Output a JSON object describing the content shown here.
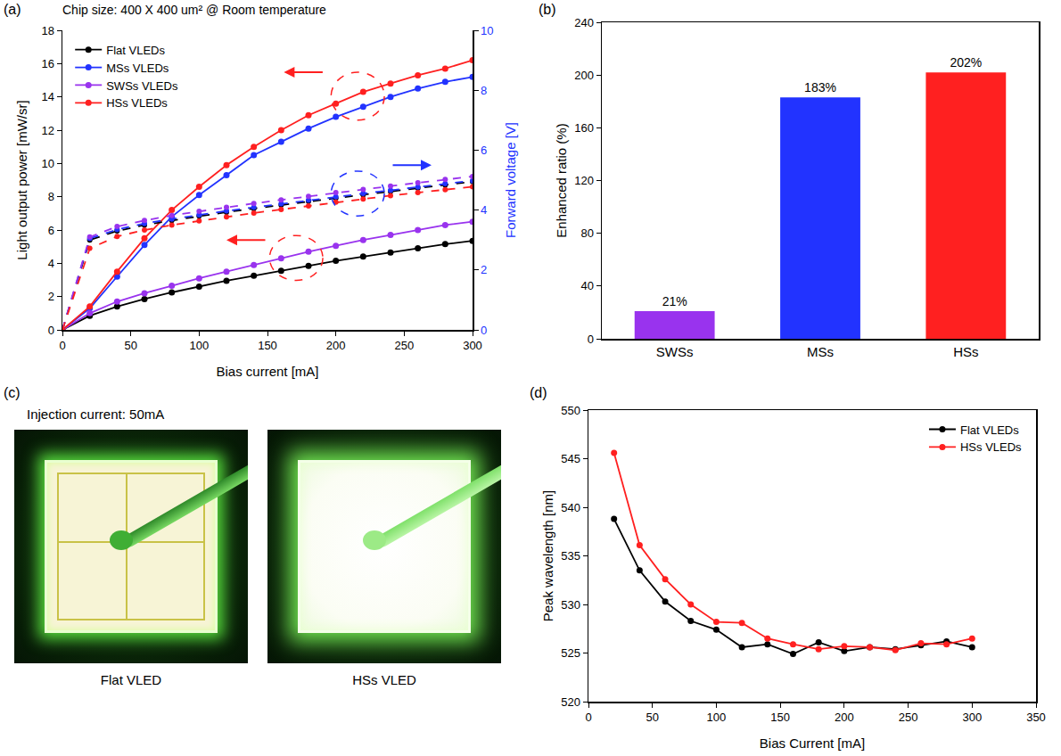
{
  "chart_data": [
    {
      "panel": "(a)",
      "type": "line",
      "title": "Chip size: 400 X 400 um² @ Room temperature",
      "x_label": "Bias current [mA]",
      "y_label": "Light output power [mW/sr]",
      "y2_label": "Forward voltage [V]",
      "x": [
        0,
        20,
        40,
        60,
        80,
        100,
        120,
        140,
        160,
        180,
        200,
        220,
        240,
        260,
        280,
        300
      ],
      "xlim": [
        0,
        300
      ],
      "xticks": [
        0,
        50,
        100,
        150,
        200,
        250,
        300
      ],
      "ylim": [
        0,
        18
      ],
      "yticks": [
        0,
        2,
        4,
        6,
        8,
        10,
        12,
        14,
        16,
        18
      ],
      "y2lim": [
        0,
        10
      ],
      "y2ticks": [
        0,
        2,
        4,
        6,
        8,
        10
      ],
      "grid": false,
      "legend": "top-left",
      "series": [
        {
          "name": "Flat VLEDs",
          "color": "#000000",
          "marker": "circle",
          "line_style": "solid",
          "values": [
            0,
            0.85,
            1.4,
            1.85,
            2.25,
            2.6,
            2.95,
            3.25,
            3.55,
            3.85,
            4.15,
            4.4,
            4.65,
            4.9,
            5.15,
            5.35
          ]
        },
        {
          "name": "MSs VLEDs",
          "color": "#2233ff",
          "marker": "circle",
          "line_style": "solid",
          "values": [
            0,
            1.3,
            3.2,
            5.1,
            6.8,
            8.1,
            9.3,
            10.5,
            11.3,
            12.1,
            12.8,
            13.4,
            14.0,
            14.5,
            14.9,
            15.2
          ]
        },
        {
          "name": "SWSs VLEDs",
          "color": "#9933ee",
          "marker": "circle",
          "line_style": "solid",
          "values": [
            0,
            1.0,
            1.7,
            2.2,
            2.65,
            3.1,
            3.5,
            3.9,
            4.3,
            4.7,
            5.05,
            5.4,
            5.7,
            6.0,
            6.3,
            6.5
          ]
        },
        {
          "name": "HSs VLEDs",
          "color": "#ff2020",
          "marker": "circle",
          "line_style": "solid",
          "values": [
            0,
            1.4,
            3.5,
            5.5,
            7.2,
            8.6,
            9.9,
            11.0,
            12.0,
            12.9,
            13.6,
            14.3,
            14.8,
            15.3,
            15.7,
            16.2
          ]
        },
        {
          "name": "Flat VLEDs",
          "color": "#000000",
          "marker": "circle",
          "line_style": "dash",
          "axis": "y2",
          "values": [
            0,
            3.0,
            3.3,
            3.5,
            3.65,
            3.8,
            3.93,
            4.05,
            4.17,
            4.29,
            4.4,
            4.51,
            4.62,
            4.73,
            4.84,
            4.95
          ]
        },
        {
          "name": "MSs VLEDs",
          "color": "#2233ff",
          "marker": "circle",
          "line_style": "dash",
          "axis": "y2",
          "values": [
            0,
            3.05,
            3.35,
            3.55,
            3.7,
            3.84,
            3.97,
            4.09,
            4.21,
            4.33,
            4.44,
            4.55,
            4.66,
            4.77,
            4.88,
            4.98
          ]
        },
        {
          "name": "SWSs VLEDs",
          "color": "#9933ee",
          "marker": "circle",
          "line_style": "dash",
          "axis": "y2",
          "values": [
            0,
            3.1,
            3.45,
            3.65,
            3.82,
            3.96,
            4.09,
            4.22,
            4.34,
            4.46,
            4.58,
            4.69,
            4.8,
            4.91,
            5.02,
            5.12
          ]
        },
        {
          "name": "HSs VLEDs",
          "color": "#ff2020",
          "marker": "circle",
          "line_style": "dash",
          "axis": "y2",
          "values": [
            0,
            2.72,
            3.12,
            3.33,
            3.5,
            3.64,
            3.77,
            3.9,
            4.02,
            4.14,
            4.26,
            4.37,
            4.48,
            4.58,
            4.68,
            4.78
          ]
        }
      ]
    },
    {
      "panel": "(b)",
      "type": "bar",
      "y_label": "Enhanced ratio (%)",
      "categories": [
        "SWSs",
        "MSs",
        "HSs"
      ],
      "values": [
        21,
        183,
        202
      ],
      "value_labels": [
        "21%",
        "183%",
        "202%"
      ],
      "colors": [
        "#9933ee",
        "#2233ff",
        "#ff2020"
      ],
      "ylim": [
        0,
        240
      ],
      "yticks": [
        0,
        40,
        80,
        120,
        160,
        200,
        240
      ],
      "grid": false,
      "data_labels": true
    },
    {
      "panel": "(d)",
      "type": "line",
      "x_label": "Bias Current [mA]",
      "y_label": "Peak wavelength [nm]",
      "x": [
        20,
        40,
        60,
        80,
        100,
        120,
        140,
        160,
        180,
        200,
        220,
        240,
        260,
        280,
        300
      ],
      "xlim": [
        0,
        350
      ],
      "xticks": [
        0,
        50,
        100,
        150,
        200,
        250,
        300,
        350
      ],
      "ylim": [
        520,
        550
      ],
      "yticks": [
        520,
        525,
        530,
        535,
        540,
        545,
        550
      ],
      "grid": false,
      "legend": "top-right",
      "series": [
        {
          "name": "Flat VLEDs",
          "color": "#000000",
          "marker": "circle",
          "line_style": "solid",
          "values": [
            538.8,
            533.5,
            530.3,
            528.3,
            527.4,
            525.6,
            525.9,
            524.9,
            526.1,
            525.2,
            525.6,
            525.4,
            525.8,
            526.2,
            525.6
          ]
        },
        {
          "name": "HSs VLEDs",
          "color": "#ff2020",
          "marker": "circle",
          "line_style": "solid",
          "values": [
            545.6,
            536.1,
            532.6,
            530.0,
            528.2,
            528.1,
            526.5,
            525.9,
            525.4,
            525.7,
            525.6,
            525.3,
            526.0,
            525.9,
            526.5
          ]
        }
      ]
    }
  ],
  "photo_panel": {
    "panel": "(c)",
    "title": "Injection current: 50mA",
    "images": [
      {
        "label": "Flat VLED"
      },
      {
        "label": "HSs VLED"
      }
    ]
  }
}
